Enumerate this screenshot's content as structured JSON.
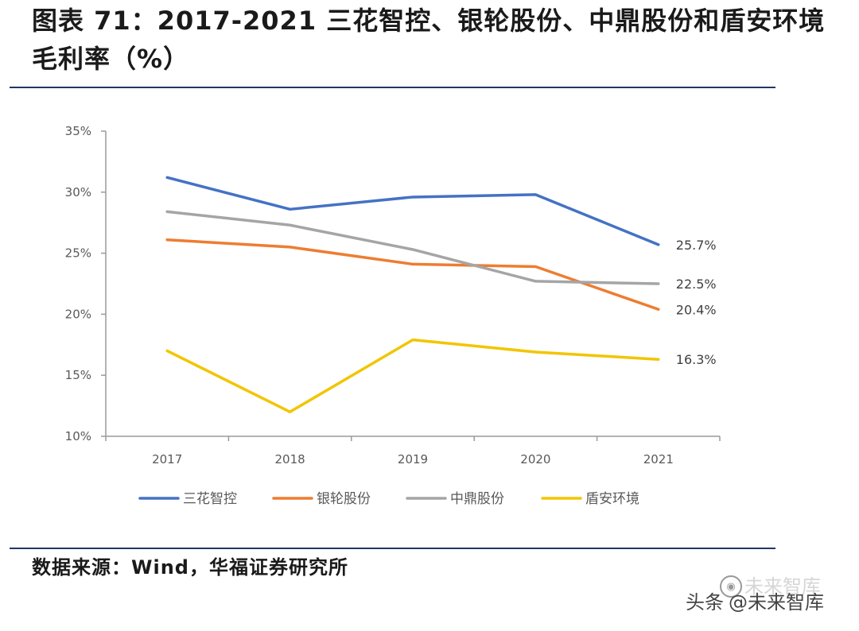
{
  "header": {
    "title": "图表 71：2017-2021 三花智控、银轮股份、中鼎股份和盾安环境毛利率（%）"
  },
  "footer": {
    "source": "数据来源：Wind，华福证券研究所"
  },
  "watermark": {
    "platform": "头条",
    "handle": "@未来智库",
    "logo_name": "未来智库",
    "logo_icon": "wechat-icon"
  },
  "chart_data": {
    "type": "line",
    "title": "",
    "xlabel": "",
    "ylabel": "",
    "categories": [
      "2017",
      "2018",
      "2019",
      "2020",
      "2021"
    ],
    "ylim": [
      10,
      35
    ],
    "yticks": [
      10,
      15,
      20,
      25,
      30,
      35
    ],
    "ytick_labels": [
      "10%",
      "15%",
      "20%",
      "25%",
      "30%",
      "35%"
    ],
    "grid": false,
    "legend_position": "bottom",
    "series": [
      {
        "name": "三花智控",
        "color": "#4472C4",
        "values": [
          31.2,
          28.6,
          29.6,
          29.8,
          25.7
        ],
        "end_label": "25.7%"
      },
      {
        "name": "银轮股份",
        "color": "#ED7D31",
        "values": [
          26.1,
          25.5,
          24.1,
          23.9,
          20.4
        ],
        "end_label": "20.4%"
      },
      {
        "name": "中鼎股份",
        "color": "#A5A5A5",
        "values": [
          28.4,
          27.3,
          25.3,
          22.7,
          22.5
        ],
        "end_label": "22.5%"
      },
      {
        "name": "盾安环境",
        "color": "#F2C500",
        "values": [
          17.0,
          12.0,
          17.9,
          16.9,
          16.3
        ],
        "end_label": "16.3%"
      }
    ]
  }
}
